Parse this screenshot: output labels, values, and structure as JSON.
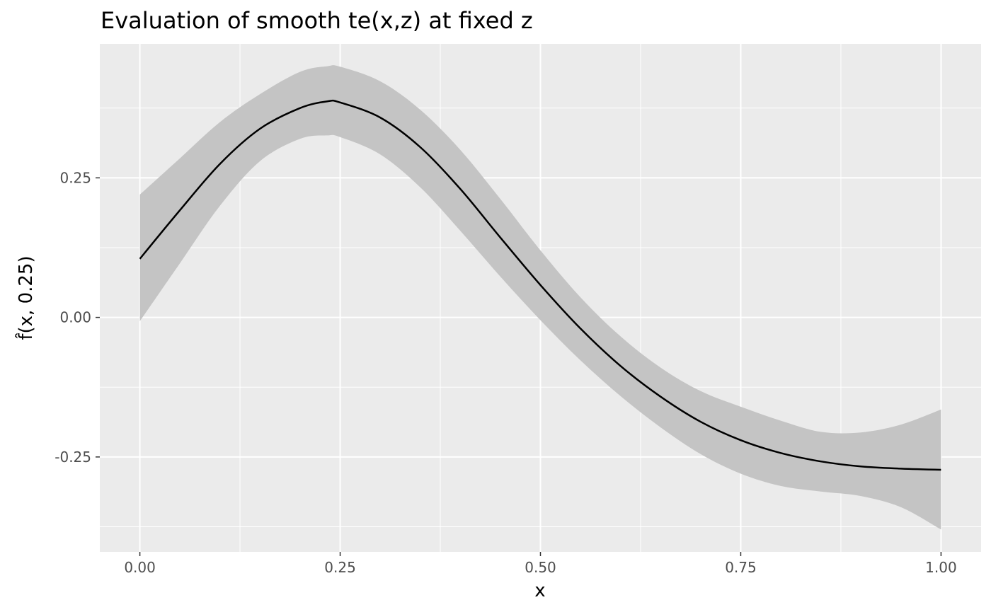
{
  "chart_data": {
    "type": "line",
    "title": "Evaluation of smooth te(x,z) at fixed z",
    "xlabel": "x",
    "ylabel": "f̂(x, 0.25)",
    "xlim": [
      -0.05,
      1.05
    ],
    "ylim": [
      -0.42,
      0.49
    ],
    "x_ticks": [
      0.0,
      0.25,
      0.5,
      0.75,
      1.0
    ],
    "x_tick_labels": [
      "0.00",
      "0.25",
      "0.50",
      "0.75",
      "1.00"
    ],
    "y_ticks": [
      -0.25,
      0.0,
      0.25
    ],
    "y_tick_labels": [
      "-0.25",
      "0.00",
      "0.25"
    ],
    "grid": true,
    "colors": {
      "panel": "#ebebeb",
      "grid": "#ffffff",
      "line": "#000000",
      "ribbon": "#c4c4c4"
    },
    "series": [
      {
        "x": [
          0.0,
          0.05,
          0.1,
          0.15,
          0.2,
          0.234,
          0.25,
          0.3,
          0.35,
          0.4,
          0.45,
          0.5,
          0.55,
          0.6,
          0.65,
          0.7,
          0.75,
          0.8,
          0.85,
          0.9,
          0.95,
          1.0
        ],
        "y": [
          0.105,
          0.192,
          0.275,
          0.338,
          0.375,
          0.387,
          0.385,
          0.358,
          0.305,
          0.23,
          0.143,
          0.058,
          -0.02,
          -0.087,
          -0.142,
          -0.187,
          -0.22,
          -0.243,
          -0.258,
          -0.267,
          -0.271,
          -0.273
        ],
        "lower": [
          -0.007,
          0.097,
          0.2,
          0.28,
          0.32,
          0.326,
          0.323,
          0.292,
          0.233,
          0.155,
          0.073,
          -0.005,
          -0.077,
          -0.141,
          -0.197,
          -0.245,
          -0.28,
          -0.302,
          -0.312,
          -0.32,
          -0.34,
          -0.38
        ],
        "upper": [
          0.22,
          0.285,
          0.35,
          0.4,
          0.44,
          0.45,
          0.449,
          0.423,
          0.372,
          0.3,
          0.212,
          0.12,
          0.036,
          -0.034,
          -0.09,
          -0.132,
          -0.16,
          -0.185,
          -0.205,
          -0.206,
          -0.192,
          -0.165
        ]
      }
    ]
  }
}
